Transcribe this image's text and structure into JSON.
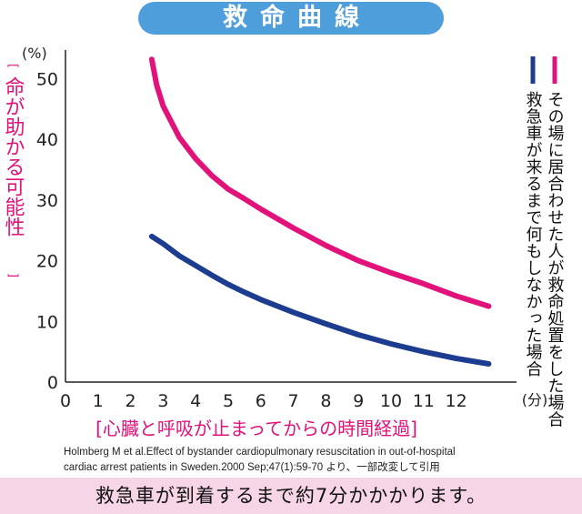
{
  "header": {
    "title": "救命曲線"
  },
  "chart_data": {
    "type": "line",
    "ylabel": "命が助かる可能性",
    "yunit": "(%)",
    "xlabel": "心臓と呼吸が止まってからの時間経過",
    "xunit": "(分)",
    "xlim": [
      0,
      13
    ],
    "ylim": [
      0,
      55
    ],
    "xticks": [
      "0",
      "1",
      "2",
      "3",
      "4",
      "5",
      "6",
      "7",
      "8",
      "9",
      "10",
      "11",
      "12"
    ],
    "yticks": [
      "0",
      "10",
      "20",
      "30",
      "40",
      "50"
    ],
    "series": [
      {
        "name": "その場に居合わせた人が救命処置をした場合",
        "color": "#e2127b",
        "x": [
          2.65,
          2.8,
          3,
          3.5,
          4,
          4.5,
          5,
          5.5,
          6,
          7,
          8,
          9,
          10,
          11,
          12,
          13
        ],
        "y": [
          53.2,
          49,
          45.5,
          40.3,
          36.8,
          34,
          31.8,
          30.2,
          28.5,
          25.4,
          22.5,
          20,
          18,
          16.2,
          14.2,
          12.5
        ]
      },
      {
        "name": "救急車が来るまで何もしなかった場合",
        "color": "#1b3c8f",
        "x": [
          2.65,
          3,
          3.5,
          4,
          4.5,
          5,
          5.5,
          6,
          7,
          8,
          9,
          10,
          11,
          12,
          13
        ],
        "y": [
          24,
          22.8,
          20.8,
          19.2,
          17.6,
          16.1,
          14.8,
          13.6,
          11.5,
          9.6,
          7.8,
          6.3,
          5,
          3.9,
          3
        ]
      }
    ],
    "source": [
      "Holmberg M et al.Effect of bystander  cardiopulmonary resuscitation in out-of-hospital",
      "cardiac arrest patients in Sweden.2000 Sep;47(1):59-70  より、一部改変して引用"
    ]
  },
  "footer": {
    "note": "救急車が到着するまで約7分かかかります。"
  }
}
